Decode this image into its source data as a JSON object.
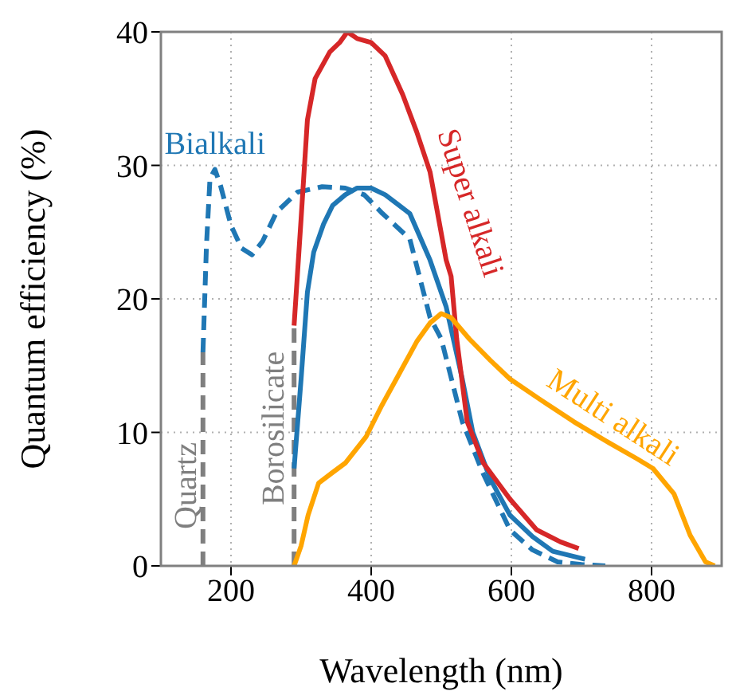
{
  "chart_data": {
    "type": "line",
    "xlabel": "Wavelength (nm)",
    "ylabel": "Quantum efficiency (%)",
    "xlim": [
      100,
      900
    ],
    "ylim": [
      0,
      40
    ],
    "xticks": [
      200,
      400,
      600,
      800
    ],
    "yticks": [
      0,
      10,
      20,
      30,
      40
    ],
    "grid": true,
    "marker": "none",
    "series": [
      {
        "name": "Quartz",
        "color": "#7f7f7f",
        "line_style": "dashed",
        "x": [
          160,
          160
        ],
        "values": [
          0,
          16
        ]
      },
      {
        "name": "Borosilicate",
        "color": "#7f7f7f",
        "line_style": "dashed",
        "x": [
          290,
          290
        ],
        "values": [
          0,
          18
        ]
      },
      {
        "name": "Bialkali",
        "color": "#1f77b4",
        "line_style": "dashed",
        "x": [
          160,
          165,
          170,
          177,
          185,
          200,
          215,
          230,
          245,
          265,
          295,
          330,
          363,
          390,
          416,
          455,
          484,
          500,
          530,
          559,
          598,
          630,
          666,
          700,
          734
        ],
        "values": [
          16,
          24,
          29,
          29.7,
          28.5,
          25.5,
          23.8,
          23.3,
          24.3,
          26.5,
          28,
          28.4,
          28.3,
          27.8,
          26.4,
          24.5,
          18.6,
          17,
          10.8,
          7,
          2.7,
          1.2,
          0.3,
          0.1,
          0
        ]
      },
      {
        "color": "#1f77b4",
        "line_style": "solid",
        "x": [
          290,
          300,
          309,
          318,
          332,
          345,
          363,
          380,
          400,
          420,
          455,
          484,
          507,
          530,
          545,
          570,
          598,
          630,
          659,
          705
        ],
        "values": [
          7.3,
          14,
          20.5,
          23.5,
          25.6,
          27,
          27.8,
          28.3,
          28.3,
          27.8,
          26.4,
          22.9,
          19.4,
          14,
          10,
          6.5,
          3.8,
          2.2,
          1.1,
          0.5
        ]
      },
      {
        "name": "Super alkali",
        "color": "#d62728",
        "line_style": "solid",
        "x": [
          290,
          300,
          309,
          320,
          341,
          355,
          366,
          380,
          400,
          420,
          445,
          465,
          484,
          507,
          514,
          522,
          537,
          560,
          598,
          636,
          670,
          696
        ],
        "values": [
          18,
          26,
          33.4,
          36.5,
          38.5,
          39.2,
          40,
          39.5,
          39.2,
          38.2,
          35.3,
          32.5,
          29.5,
          22.9,
          21.7,
          17,
          10.8,
          7.7,
          5,
          2.7,
          1.8,
          1.3
        ]
      },
      {
        "name": "Multi alkali",
        "color": "#ffa500",
        "line_style": "solid",
        "x": [
          290,
          300,
          310,
          325,
          345,
          363,
          393,
          415,
          439,
          465,
          484,
          500,
          514,
          540,
          570,
          598,
          640,
          689,
          740,
          780,
          802,
          832,
          855,
          877,
          890
        ],
        "values": [
          0,
          1.5,
          3.8,
          6.2,
          7,
          7.7,
          9.7,
          12,
          14.3,
          16.8,
          18.2,
          18.9,
          18.6,
          17,
          15.4,
          14,
          12.5,
          10.8,
          9.2,
          8,
          7.3,
          5.4,
          2.3,
          0.3,
          0
        ]
      }
    ]
  }
}
